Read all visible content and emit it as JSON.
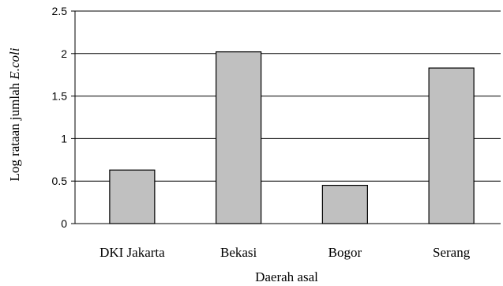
{
  "chart_data": {
    "type": "bar",
    "categories": [
      "DKI Jakarta",
      "Bekasi",
      "Bogor",
      "Serang"
    ],
    "values": [
      0.63,
      2.02,
      0.45,
      1.83
    ],
    "xlabel": "Daerah asal",
    "ylabel_prefix": "Log rataan jumlah ",
    "ylabel_italic": "E.coli",
    "ylim": [
      0,
      2.5
    ],
    "yticks": [
      "0",
      "0.5",
      "1",
      "1.5",
      "2",
      "2.5"
    ],
    "grid": true,
    "legend": "none",
    "bar_color": "#c0c0c0"
  }
}
